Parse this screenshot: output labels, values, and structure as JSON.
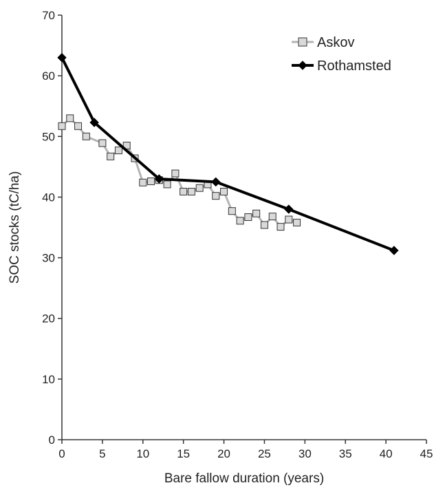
{
  "chart_data": {
    "type": "line",
    "title": "",
    "xlabel": "Bare fallow duration (years)",
    "ylabel": "SOC stocks (tC/ha)",
    "xlim": [
      0,
      45
    ],
    "ylim": [
      0,
      70
    ],
    "xticks": [
      0,
      5,
      10,
      15,
      20,
      25,
      30,
      35,
      40,
      45
    ],
    "yticks": [
      0,
      10,
      20,
      30,
      40,
      50,
      60,
      70
    ],
    "grid": false,
    "legend_position": "top-right",
    "series": [
      {
        "name": "Askov",
        "color": "#b4b4b4",
        "marker": "square",
        "marker_fill": "#d9d9d9",
        "marker_edge": "#333333",
        "x": [
          0,
          1,
          2,
          3,
          5,
          6,
          7,
          8,
          9,
          10,
          11,
          12,
          13,
          14,
          15,
          16,
          17,
          18,
          19,
          20,
          21,
          22,
          23,
          24,
          25,
          26,
          27,
          28,
          29
        ],
        "y": [
          51.7,
          53.0,
          51.7,
          50.0,
          48.9,
          46.7,
          47.7,
          48.5,
          46.4,
          42.4,
          42.6,
          42.8,
          42.1,
          43.9,
          40.9,
          40.9,
          41.5,
          42.1,
          40.2,
          40.9,
          37.7,
          36.1,
          36.7,
          37.3,
          35.4,
          36.8,
          35.1,
          36.3,
          35.8
        ]
      },
      {
        "name": "Rothamsted",
        "color": "#000000",
        "marker": "diamond",
        "marker_fill": "#000000",
        "marker_edge": "#000000",
        "x": [
          0,
          4,
          12,
          19,
          28,
          41
        ],
        "y": [
          63.0,
          52.3,
          43.0,
          42.5,
          38.0,
          31.2
        ]
      }
    ]
  }
}
